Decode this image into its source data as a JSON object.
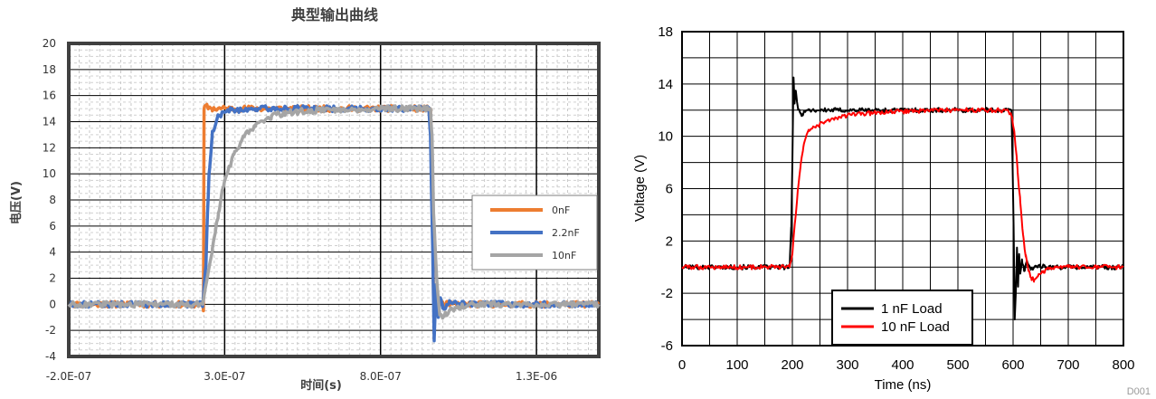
{
  "chart_data": [
    {
      "type": "line",
      "title": "典型输出曲线",
      "xlabel": "时间(s)",
      "ylabel": "电压(V)",
      "xlim": [
        -2e-07,
        1.5e-06
      ],
      "ylim": [
        -4,
        20
      ],
      "yticks": [
        -4,
        -2,
        0,
        2,
        4,
        6,
        8,
        10,
        12,
        14,
        16,
        18,
        20
      ],
      "ytick_labels": [
        "-4",
        "-2",
        "0",
        "2",
        "4",
        "6",
        "8",
        "10",
        "12",
        "14",
        "16",
        "18",
        "20"
      ],
      "xticks": [
        -2e-07,
        3e-07,
        8e-07,
        1.3e-06
      ],
      "xtick_labels": [
        "-2.0E-07",
        "3.0E-07",
        "8.0E-07",
        "1.3E-06"
      ],
      "grid": true,
      "legend_position": "right",
      "series": [
        {
          "name": "0nF",
          "color": "#ED7D31",
          "x": [
            -2e-07,
            2.3e-07,
            2.32e-07,
            2.34e-07,
            2.36e-07,
            2.6e-07,
            4e-07,
            6e-07,
            8e-07,
            9e-07,
            9.6e-07,
            9.65e-07,
            9.7e-07,
            9.8e-07,
            9.9e-07,
            1e-06,
            1.1e-06,
            1.2e-06,
            1.3e-06,
            1.4e-06,
            1.5e-06
          ],
          "y": [
            0,
            0,
            -0.5,
            15,
            15.2,
            15,
            15,
            15,
            15,
            15,
            15,
            12,
            0.2,
            0.3,
            0.1,
            0,
            0,
            0,
            0,
            0,
            0
          ]
        },
        {
          "name": "2.2nF",
          "color": "#4472C4",
          "x": [
            -2e-07,
            2.3e-07,
            2.4e-07,
            2.45e-07,
            2.5e-07,
            2.6e-07,
            2.8e-07,
            3.2e-07,
            4e-07,
            6e-07,
            8e-07,
            9e-07,
            9.55e-07,
            9.6e-07,
            9.68e-07,
            9.72e-07,
            9.78e-07,
            9.85e-07,
            9.92e-07,
            1e-06,
            1.02e-06,
            1.05e-06,
            1.1e-06,
            1.2e-06,
            1.3e-06,
            1.4e-06,
            1.5e-06
          ],
          "y": [
            0,
            0,
            3,
            7,
            10,
            13,
            14.5,
            14.9,
            15,
            15,
            15,
            15,
            15,
            13,
            3,
            -2.8,
            1.5,
            -1,
            0.5,
            -0.3,
            0.1,
            0,
            0,
            0,
            0,
            0,
            0
          ]
        },
        {
          "name": "10nF",
          "color": "#A5A5A5",
          "x": [
            -2e-07,
            2.3e-07,
            2.6e-07,
            2.8e-07,
            3e-07,
            3.3e-07,
            3.6e-07,
            4e-07,
            4.5e-07,
            5e-07,
            6e-07,
            8e-07,
            9e-07,
            9.6e-07,
            9.65e-07,
            9.7e-07,
            9.8e-07,
            9.9e-07,
            1e-06,
            1.02e-06,
            1.05e-06,
            1.1e-06,
            1.2e-06,
            1.3e-06,
            1.4e-06,
            1.5e-06
          ],
          "y": [
            0,
            0,
            4,
            7,
            9.5,
            11.5,
            12.8,
            13.8,
            14.4,
            14.7,
            14.9,
            15,
            15,
            15,
            13,
            7,
            2,
            -0.8,
            -1,
            -0.5,
            -0.2,
            0,
            0,
            0,
            0,
            0
          ]
        }
      ]
    },
    {
      "type": "line",
      "xlabel": "Time (ns)",
      "ylabel": "Voltage (V)",
      "xlim": [
        0,
        800
      ],
      "ylim": [
        -6,
        18
      ],
      "xticks": [
        0,
        100,
        200,
        300,
        400,
        500,
        600,
        700,
        800
      ],
      "xtick_labels": [
        "0",
        "100",
        "200",
        "300",
        "400",
        "500",
        "600",
        "700",
        "800"
      ],
      "yticks": [
        -6,
        -2,
        2,
        6,
        10,
        14,
        18
      ],
      "ytick_labels": [
        "-6",
        "-2",
        "2",
        "6",
        "10",
        "14",
        "18"
      ],
      "grid": true,
      "legend_position": "bottom-center",
      "corner_label": "D001",
      "series": [
        {
          "name": "1 nF Load",
          "color": "#000000",
          "x": [
            0,
            195,
            198,
            200,
            202,
            204,
            206,
            208,
            210,
            214,
            218,
            222,
            230,
            300,
            400,
            500,
            597,
            599,
            601,
            603,
            605,
            607,
            609,
            611,
            613,
            616,
            620,
            625,
            632,
            640,
            660,
            700,
            800
          ],
          "y": [
            0,
            0,
            3,
            8,
            14.5,
            12.5,
            13.5,
            12.8,
            12.2,
            11.8,
            11.7,
            11.9,
            12,
            12,
            12,
            12,
            12,
            8,
            3,
            -4,
            -2,
            1.5,
            -1.5,
            1,
            -0.5,
            0.6,
            -0.3,
            0.5,
            -0.2,
            0.1,
            0,
            0,
            0
          ]
        },
        {
          "name": "10 nF Load",
          "color": "#FF0000",
          "x": [
            0,
            195,
            200,
            205,
            210,
            215,
            220,
            225,
            230,
            240,
            260,
            280,
            300,
            350,
            400,
            450,
            500,
            590,
            598,
            603,
            608,
            613,
            618,
            623,
            628,
            633,
            638,
            645,
            655,
            670,
            700,
            800
          ],
          "y": [
            0,
            0,
            1,
            3.5,
            6,
            7.8,
            9.2,
            10,
            10.4,
            10.7,
            11.1,
            11.4,
            11.6,
            11.8,
            11.9,
            12,
            12,
            12,
            11.5,
            10,
            7.5,
            5,
            2.5,
            0.8,
            -0.3,
            -0.8,
            -1,
            -0.7,
            -0.3,
            -0.1,
            0,
            0
          ]
        }
      ]
    }
  ]
}
